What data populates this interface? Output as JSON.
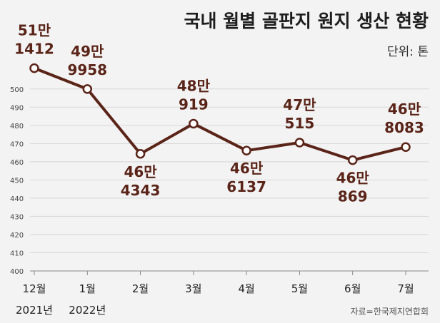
{
  "chart_data": {
    "type": "line",
    "title": "국내 월별 골판지 원지 생산 현황",
    "unit_label": "단위: 톤",
    "source": "자료=한국제지연합회",
    "ylim": [
      400,
      505
    ],
    "yticks": [
      400,
      410,
      420,
      430,
      440,
      450,
      460,
      470,
      480,
      490,
      500
    ],
    "grid": true,
    "categories": [
      {
        "month": "12월",
        "year": "2021년"
      },
      {
        "month": "1월",
        "year": "2022년"
      },
      {
        "month": "2월",
        "year": ""
      },
      {
        "month": "3월",
        "year": ""
      },
      {
        "month": "4월",
        "year": ""
      },
      {
        "month": "5월",
        "year": ""
      },
      {
        "month": "6월",
        "year": ""
      },
      {
        "month": "7월",
        "year": ""
      }
    ],
    "values": [
      511412,
      499958,
      464343,
      480919,
      466137,
      470515,
      460869,
      468083
    ],
    "labels": [
      {
        "top": "51만",
        "bottom": "1412",
        "pos": "above"
      },
      {
        "top": "49만",
        "bottom": "9958",
        "pos": "above"
      },
      {
        "top": "46만",
        "bottom": "4343",
        "pos": "below"
      },
      {
        "top": "48만",
        "bottom": "919",
        "pos": "above"
      },
      {
        "top": "46만",
        "bottom": "6137",
        "pos": "below"
      },
      {
        "top": "47만",
        "bottom": "515",
        "pos": "above"
      },
      {
        "top": "46만",
        "bottom": "869",
        "pos": "below"
      },
      {
        "top": "46만",
        "bottom": "8083",
        "pos": "above"
      }
    ],
    "colors": {
      "line": "#5a2418",
      "marker_fill": "#ffffff",
      "label": "#5a2418"
    }
  }
}
